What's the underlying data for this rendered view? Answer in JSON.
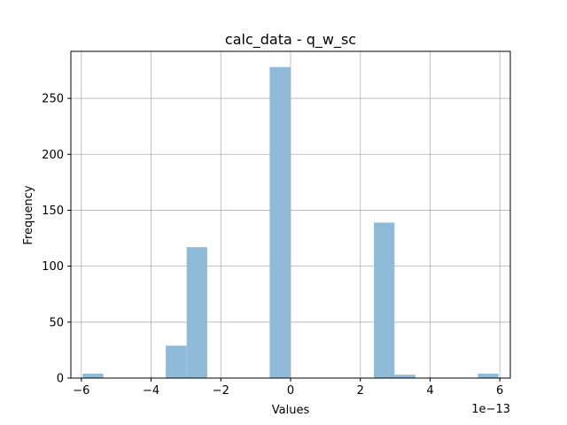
{
  "chart_data": {
    "type": "histogram",
    "title": "calc_data - q_w_sc",
    "xlabel": "Values",
    "ylabel": "Frequency",
    "x_offset_text": "1e−13",
    "xlim": [
      -6.3,
      6.3
    ],
    "ylim": [
      0,
      292
    ],
    "grid": true,
    "bar_color": "#8fbbd9",
    "bin_edges": [
      -5.96,
      -5.37,
      -4.77,
      -4.18,
      -3.58,
      -2.98,
      -2.39,
      -1.79,
      -1.19,
      -0.6,
      0.0,
      0.6,
      1.19,
      1.79,
      2.39,
      2.98,
      3.58,
      4.18,
      4.77,
      5.37,
      5.96
    ],
    "counts": [
      4,
      0,
      0,
      0,
      29,
      117,
      0,
      0,
      0,
      278,
      0,
      0,
      0,
      0,
      139,
      3,
      0,
      0,
      0,
      4
    ],
    "x_ticks": [
      {
        "value": -6,
        "label": "−6"
      },
      {
        "value": -4,
        "label": "−4"
      },
      {
        "value": -2,
        "label": "−2"
      },
      {
        "value": 0,
        "label": "0"
      },
      {
        "value": 2,
        "label": "2"
      },
      {
        "value": 4,
        "label": "4"
      },
      {
        "value": 6,
        "label": "6"
      }
    ],
    "y_ticks": [
      {
        "value": 0,
        "label": "0"
      },
      {
        "value": 50,
        "label": "50"
      },
      {
        "value": 100,
        "label": "100"
      },
      {
        "value": 150,
        "label": "150"
      },
      {
        "value": 200,
        "label": "200"
      },
      {
        "value": 250,
        "label": "250"
      }
    ]
  }
}
